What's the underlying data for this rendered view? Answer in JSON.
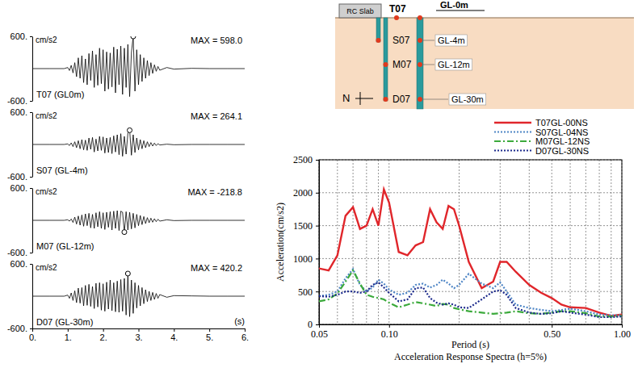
{
  "chart_data": [
    {
      "type": "line",
      "title": "T07 (GL0m)",
      "annotation": "MAX = 598.0",
      "ylabel": "cm/s2",
      "color": "#000000",
      "x": [
        0,
        0.5,
        0.9,
        1.0,
        1.05,
        1.1,
        1.15,
        1.2,
        1.25,
        1.3,
        1.35,
        1.4,
        1.45,
        1.5,
        1.55,
        1.6,
        1.65,
        1.7,
        1.75,
        1.8,
        1.85,
        1.9,
        1.95,
        2.0,
        2.05,
        2.1,
        2.15,
        2.2,
        2.25,
        2.3,
        2.35,
        2.4,
        2.45,
        2.5,
        2.55,
        2.6,
        2.65,
        2.7,
        2.75,
        2.8,
        2.85,
        2.9,
        2.95,
        3.0,
        3.05,
        3.1,
        3.15,
        3.2,
        3.25,
        3.3,
        3.35,
        3.4,
        3.45,
        3.5,
        3.55,
        3.6,
        3.8,
        4.0,
        4.5,
        5.0,
        5.5,
        6.0
      ],
      "values": [
        0,
        0,
        0,
        20,
        -35,
        60,
        -80,
        110,
        -150,
        200,
        -180,
        240,
        -260,
        180,
        -300,
        280,
        -220,
        330,
        -350,
        260,
        -310,
        380,
        -280,
        350,
        -420,
        310,
        -380,
        290,
        -340,
        400,
        -450,
        360,
        -300,
        420,
        -480,
        380,
        -350,
        450,
        -520,
        300,
        598.0,
        -420,
        350,
        -300,
        260,
        -240,
        200,
        -180,
        150,
        -130,
        110,
        -90,
        70,
        -50,
        40,
        -30,
        20,
        -10,
        5,
        0,
        0,
        0
      ],
      "peak": {
        "x": 2.85,
        "value": 598.0
      },
      "xlim": [
        0,
        6
      ],
      "ylim": [
        -600,
        600
      ],
      "yticks": [
        {
          "value": 600,
          "label": "600."
        },
        {
          "value": -600,
          "label": "-600."
        }
      ],
      "tick_labels": "y"
    },
    {
      "type": "line",
      "title": "S07 (GL-4m)",
      "annotation": "MAX = 264.1",
      "ylabel": "cm/s2",
      "color": "#000000",
      "x": [
        0,
        0.5,
        0.9,
        1.0,
        1.05,
        1.1,
        1.15,
        1.2,
        1.25,
        1.3,
        1.35,
        1.4,
        1.45,
        1.5,
        1.55,
        1.6,
        1.65,
        1.7,
        1.75,
        1.8,
        1.85,
        1.9,
        1.95,
        2.0,
        2.05,
        2.1,
        2.15,
        2.2,
        2.25,
        2.3,
        2.35,
        2.4,
        2.45,
        2.5,
        2.55,
        2.6,
        2.65,
        2.7,
        2.75,
        2.8,
        2.85,
        2.9,
        2.95,
        3.0,
        3.05,
        3.1,
        3.15,
        3.2,
        3.25,
        3.3,
        3.35,
        3.4,
        3.45,
        3.5,
        3.55,
        3.6,
        3.8,
        4.0,
        4.5,
        5.0,
        5.5,
        6.0
      ],
      "values": [
        0,
        0,
        0,
        10,
        -20,
        30,
        -40,
        50,
        -60,
        70,
        -80,
        90,
        -100,
        80,
        -110,
        120,
        -90,
        130,
        -140,
        100,
        -120,
        150,
        -110,
        140,
        -160,
        120,
        -150,
        130,
        -170,
        160,
        -140,
        180,
        -190,
        200,
        -220,
        150,
        -180,
        210,
        264.1,
        -200,
        180,
        -150,
        120,
        -100,
        90,
        -80,
        70,
        -60,
        50,
        -40,
        35,
        -30,
        25,
        -20,
        15,
        -10,
        5,
        -5,
        0,
        0,
        0,
        0
      ],
      "peak": {
        "x": 2.75,
        "value": 264.1
      },
      "xlim": [
        0,
        6
      ],
      "ylim": [
        -600,
        600
      ],
      "yticks": [
        {
          "value": 600,
          "label": "600."
        },
        {
          "value": -600,
          "label": "-600."
        }
      ],
      "tick_labels": "y"
    },
    {
      "type": "line",
      "title": "M07 (GL-12m)",
      "annotation": "MAX = -218.8",
      "ylabel": "cm/s2",
      "color": "#000000",
      "x": [
        0,
        0.5,
        0.9,
        1.0,
        1.05,
        1.1,
        1.15,
        1.2,
        1.25,
        1.3,
        1.35,
        1.4,
        1.45,
        1.5,
        1.55,
        1.6,
        1.65,
        1.7,
        1.75,
        1.8,
        1.85,
        1.9,
        1.95,
        2.0,
        2.05,
        2.1,
        2.15,
        2.2,
        2.25,
        2.3,
        2.35,
        2.4,
        2.45,
        2.5,
        2.55,
        2.6,
        2.65,
        2.7,
        2.75,
        2.8,
        2.85,
        2.9,
        2.95,
        3.0,
        3.05,
        3.1,
        3.15,
        3.2,
        3.25,
        3.3,
        3.35,
        3.4,
        3.45,
        3.5,
        3.55,
        3.6,
        3.8,
        4.0,
        4.5,
        5.0,
        5.5,
        6.0
      ],
      "values": [
        0,
        0,
        0,
        10,
        -15,
        25,
        -40,
        60,
        -70,
        80,
        -90,
        100,
        -110,
        120,
        -100,
        130,
        -140,
        110,
        -150,
        140,
        -120,
        160,
        -150,
        140,
        -170,
        150,
        -130,
        160,
        -180,
        170,
        -150,
        180,
        -190,
        170,
        150,
        -218.8,
        160,
        -180,
        150,
        -160,
        130,
        -140,
        110,
        -100,
        90,
        -80,
        70,
        -60,
        50,
        -45,
        40,
        -35,
        30,
        -25,
        20,
        -15,
        10,
        -5,
        0,
        0,
        0,
        0
      ],
      "peak": {
        "x": 2.6,
        "value": -218.8
      },
      "xlim": [
        0,
        6
      ],
      "ylim": [
        -600,
        600
      ],
      "yticks": [
        {
          "value": 600,
          "label": "600."
        },
        {
          "value": -600,
          "label": "-600."
        }
      ],
      "tick_labels": "y"
    },
    {
      "type": "line",
      "title": "D07 (GL-30m)",
      "annotation": "MAX = 420.2",
      "ylabel": "cm/s2",
      "xlabel": "(s)",
      "color": "#000000",
      "x": [
        0,
        0.5,
        0.9,
        1.0,
        1.05,
        1.1,
        1.15,
        1.2,
        1.25,
        1.3,
        1.35,
        1.4,
        1.45,
        1.5,
        1.55,
        1.6,
        1.65,
        1.7,
        1.75,
        1.8,
        1.85,
        1.9,
        1.95,
        2.0,
        2.05,
        2.1,
        2.15,
        2.2,
        2.25,
        2.3,
        2.35,
        2.4,
        2.45,
        2.5,
        2.55,
        2.6,
        2.65,
        2.7,
        2.75,
        2.8,
        2.85,
        2.9,
        2.95,
        3.0,
        3.05,
        3.1,
        3.15,
        3.2,
        3.25,
        3.3,
        3.35,
        3.4,
        3.45,
        3.5,
        3.55,
        3.6,
        3.8,
        4.0,
        4.5,
        5.0,
        5.5,
        6.0
      ],
      "values": [
        0,
        0,
        0,
        20,
        -40,
        60,
        -80,
        100,
        -120,
        150,
        -130,
        160,
        -180,
        200,
        -170,
        220,
        -190,
        180,
        -230,
        240,
        -200,
        250,
        -260,
        230,
        -280,
        260,
        -240,
        300,
        -270,
        250,
        -290,
        280,
        -300,
        310,
        -280,
        330,
        -350,
        420.2,
        -380,
        300,
        -320,
        250,
        -220,
        200,
        -180,
        160,
        -140,
        120,
        -100,
        90,
        -80,
        70,
        -60,
        50,
        -40,
        30,
        -20,
        10,
        5,
        0,
        0,
        0
      ],
      "peak": {
        "x": 2.7,
        "value": 420.2
      },
      "xlim": [
        0,
        6
      ],
      "ylim": [
        -600,
        600
      ],
      "xticks": [
        {
          "value": 0,
          "label": "0."
        },
        {
          "value": 1,
          "label": "1."
        },
        {
          "value": 2,
          "label": "2."
        },
        {
          "value": 3,
          "label": "3."
        },
        {
          "value": 4,
          "label": "4."
        },
        {
          "value": 5,
          "label": "5."
        },
        {
          "value": 6,
          "label": "6."
        }
      ],
      "yticks": [
        {
          "value": 600,
          "label": "600."
        },
        {
          "value": -600,
          "label": "-600."
        }
      ]
    },
    {
      "type": "line",
      "title": "Acceleration Response Spectra (h=5%)",
      "xlabel": "Period (s)",
      "ylabel": "Acceleration(cm/s2)",
      "log": "x",
      "grid": true,
      "legend": "top-right",
      "x": [
        0.05,
        0.055,
        0.06,
        0.065,
        0.07,
        0.075,
        0.08,
        0.085,
        0.09,
        0.095,
        0.1,
        0.11,
        0.12,
        0.13,
        0.14,
        0.15,
        0.16,
        0.17,
        0.18,
        0.19,
        0.2,
        0.22,
        0.25,
        0.28,
        0.3,
        0.32,
        0.35,
        0.4,
        0.45,
        0.5,
        0.55,
        0.6,
        0.7,
        0.8,
        0.9,
        1.0
      ],
      "series": [
        {
          "name": "T07GL-00NS",
          "color": "#e0262b",
          "line_style": "solid",
          "values": [
            850,
            820,
            1050,
            1650,
            1780,
            1450,
            1500,
            1750,
            1500,
            2050,
            1850,
            1100,
            1050,
            1200,
            1250,
            1750,
            1550,
            1450,
            1800,
            1750,
            1500,
            950,
            550,
            650,
            950,
            950,
            800,
            600,
            480,
            400,
            300,
            260,
            250,
            180,
            130,
            150
          ]
        },
        {
          "name": "S07GL-04NS",
          "color": "#4f86c6",
          "line_style": "dotted",
          "values": [
            430,
            450,
            500,
            700,
            840,
            600,
            500,
            560,
            680,
            620,
            530,
            450,
            480,
            600,
            620,
            560,
            600,
            680,
            620,
            550,
            600,
            770,
            620,
            550,
            640,
            500,
            300,
            250,
            220,
            200,
            220,
            240,
            200,
            150,
            140,
            140
          ]
        },
        {
          "name": "M07GL-12NS",
          "color": "#3caa3c",
          "line_style": "dashdot",
          "values": [
            350,
            380,
            470,
            650,
            820,
            620,
            450,
            420,
            400,
            380,
            330,
            260,
            300,
            340,
            320,
            300,
            280,
            310,
            300,
            250,
            230,
            200,
            180,
            160,
            170,
            180,
            200,
            170,
            160,
            180,
            200,
            200,
            170,
            120,
            120,
            130
          ]
        },
        {
          "name": "D07GL-30NS",
          "color": "#1c2a8c",
          "line_style": "dotted",
          "values": [
            430,
            420,
            450,
            500,
            500,
            480,
            500,
            600,
            640,
            560,
            480,
            350,
            380,
            550,
            560,
            400,
            330,
            300,
            320,
            300,
            260,
            250,
            380,
            500,
            520,
            450,
            250,
            180,
            160,
            170,
            200,
            180,
            150,
            110,
            110,
            120
          ]
        }
      ],
      "xlim": [
        0.05,
        1.0
      ],
      "ylim": [
        0,
        2500
      ],
      "xticks": [
        0.05,
        {
          "value": 0.1,
          "label": "0.10"
        },
        {
          "value": 0.5,
          "label": "0.50"
        },
        {
          "value": 1.0,
          "label": "1.00"
        }
      ],
      "minor_xticks": [
        0.06,
        0.07,
        0.08,
        0.09,
        0.2,
        0.3,
        0.4,
        0.6,
        0.7,
        0.8,
        0.9
      ],
      "yticks": [
        0,
        500,
        1000,
        1500,
        2000,
        2500
      ]
    }
  ],
  "diagram": {
    "structure": "RC Slab",
    "surface_sensor": "T07",
    "surface_level": "GL-0m",
    "sensors": [
      {
        "name": "S07",
        "depth": "GL-4m"
      },
      {
        "name": "M07",
        "depth": "GL-12m"
      },
      {
        "name": "D07",
        "depth": "GL-30m"
      }
    ],
    "north": "N"
  }
}
